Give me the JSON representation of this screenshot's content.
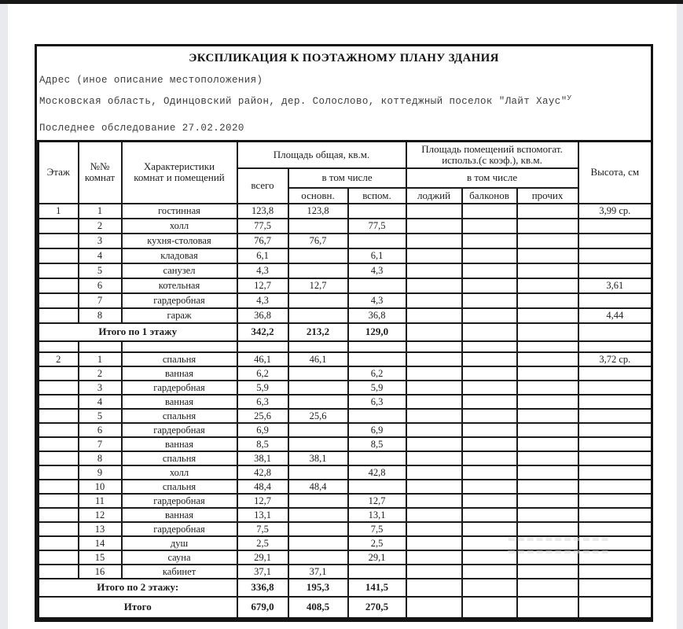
{
  "document": {
    "title": "ЭКСПЛИКАЦИЯ К ПОЭТАЖНОМУ ПЛАНУ ЗДАНИЯ",
    "address_label": "Адрес (иное описание местоположения)",
    "address_value": "Московская область, Одинцовский район, дер. Солослово, коттеджный поселок \"Лайт Хаус\"",
    "address_superscript": "У",
    "survey_note": "Последнее обследование 27.02.2020"
  },
  "table": {
    "header": {
      "floor": "Этаж",
      "rooms_no": "№№\nкомнат",
      "characteristics": "Характеристики\nкомнат и помещений",
      "total_area_group": "Площадь общая, кв.м.",
      "aux_area_group": "Площадь помещений вспомогат.\nиспольз.(с коэф.), кв.м.",
      "total": "всего",
      "including_1": "в том числе",
      "including_2": "в том числе",
      "main": "основн.",
      "aux": "вспом.",
      "loggias": "лоджий",
      "balconies": "балконов",
      "others": "прочих",
      "height": "Высота, см"
    },
    "rows": [
      {
        "type": "data",
        "cells": [
          "1",
          "1",
          "гостинная",
          "123,8",
          "123,8",
          "",
          "",
          "",
          "",
          "3,99 ср."
        ]
      },
      {
        "type": "data",
        "cells": [
          "",
          "2",
          "холл",
          "77,5",
          "",
          "77,5",
          "",
          "",
          "",
          ""
        ]
      },
      {
        "type": "data",
        "cells": [
          "",
          "3",
          "кухня-столовая",
          "76,7",
          "76,7",
          "",
          "",
          "",
          "",
          ""
        ]
      },
      {
        "type": "data",
        "cells": [
          "",
          "4",
          "кладовая",
          "6,1",
          "",
          "6,1",
          "",
          "",
          "",
          ""
        ]
      },
      {
        "type": "data",
        "cells": [
          "",
          "5",
          "санузел",
          "4,3",
          "",
          "4,3",
          "",
          "",
          "",
          ""
        ]
      },
      {
        "type": "data",
        "cells": [
          "",
          "6",
          "котельная",
          "12,7",
          "12,7",
          "",
          "",
          "",
          "",
          "3,61"
        ]
      },
      {
        "type": "data",
        "cells": [
          "",
          "7",
          "гардеробная",
          "4,3",
          "",
          "4,3",
          "",
          "",
          "",
          ""
        ]
      },
      {
        "type": "data",
        "cells": [
          "",
          "8",
          "гараж",
          "36,8",
          "",
          "36,8",
          "",
          "",
          "",
          "4,44"
        ]
      },
      {
        "type": "total",
        "label": "Итого по 1 этажу",
        "values": [
          "342,2",
          "213,2",
          "129,0",
          "",
          "",
          "",
          ""
        ]
      },
      {
        "type": "spacer"
      },
      {
        "type": "data",
        "cells": [
          "2",
          "1",
          "спальня",
          "46,1",
          "46,1",
          "",
          "",
          "",
          "",
          "3,72 ср."
        ]
      },
      {
        "type": "data",
        "cells": [
          "",
          "2",
          "ванная",
          "6,2",
          "",
          "6,2",
          "",
          "",
          "",
          ""
        ]
      },
      {
        "type": "data",
        "cells": [
          "",
          "3",
          "гардеробная",
          "5,9",
          "",
          "5,9",
          "",
          "",
          "",
          ""
        ]
      },
      {
        "type": "data",
        "cells": [
          "",
          "4",
          "ванная",
          "6,3",
          "",
          "6,3",
          "",
          "",
          "",
          ""
        ]
      },
      {
        "type": "data",
        "cells": [
          "",
          "5",
          "спальня",
          "25,6",
          "25,6",
          "",
          "",
          "",
          "",
          ""
        ]
      },
      {
        "type": "data",
        "cells": [
          "",
          "6",
          "гардеробная",
          "6,9",
          "",
          "6,9",
          "",
          "",
          "",
          ""
        ]
      },
      {
        "type": "data",
        "cells": [
          "",
          "7",
          "ванная",
          "8,5",
          "",
          "8,5",
          "",
          "",
          "",
          ""
        ]
      },
      {
        "type": "data",
        "cells": [
          "",
          "8",
          "спальня",
          "38,1",
          "38,1",
          "",
          "",
          "",
          "",
          ""
        ]
      },
      {
        "type": "data",
        "cells": [
          "",
          "9",
          "холл",
          "42,8",
          "",
          "42,8",
          "",
          "",
          "",
          ""
        ]
      },
      {
        "type": "data",
        "cells": [
          "",
          "10",
          "спальня",
          "48,4",
          "48,4",
          "",
          "",
          "",
          "",
          ""
        ]
      },
      {
        "type": "data",
        "cells": [
          "",
          "11",
          "гардеробная",
          "12,7",
          "",
          "12,7",
          "",
          "",
          "",
          ""
        ]
      },
      {
        "type": "data",
        "cells": [
          "",
          "12",
          "ванная",
          "13,1",
          "",
          "13,1",
          "",
          "",
          "",
          ""
        ]
      },
      {
        "type": "data",
        "cells": [
          "",
          "13",
          "гардеробная",
          "7,5",
          "",
          "7,5",
          "",
          "",
          "",
          ""
        ]
      },
      {
        "type": "data",
        "cells": [
          "",
          "14",
          "душ",
          "2,5",
          "",
          "2,5",
          "",
          "",
          "",
          ""
        ]
      },
      {
        "type": "data",
        "cells": [
          "",
          "15",
          "сауна",
          "29,1",
          "",
          "29,1",
          "",
          "",
          "",
          ""
        ]
      },
      {
        "type": "data",
        "cells": [
          "",
          "16",
          "кабинет",
          "37,1",
          "37,1",
          "",
          "",
          "",
          "",
          ""
        ]
      },
      {
        "type": "total",
        "label": "Итого по 2 этажу:",
        "values": [
          "336,8",
          "195,3",
          "141,5",
          "",
          "",
          "",
          ""
        ]
      },
      {
        "type": "grand",
        "label": "Итого",
        "values": [
          "679,0",
          "408,5",
          "270,5",
          "",
          "",
          "",
          ""
        ]
      }
    ]
  },
  "colors": {
    "border": "#141414",
    "text": "#1c1c1c",
    "address_text": "#3d3d3d",
    "top_bar": "#171717",
    "side_strip": "#e9e9f0",
    "watermark": "#d9d9de"
  }
}
